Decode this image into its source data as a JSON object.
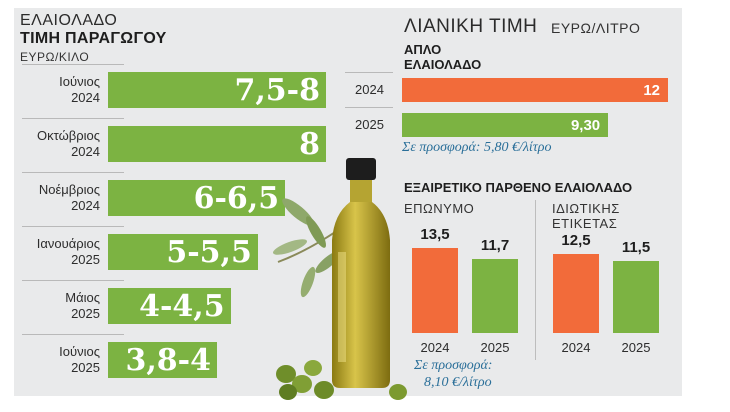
{
  "left": {
    "title1": "ΕΛΑΙΟΛΑΔΟ",
    "title2": "ΤΙΜΗ ΠΑΡΑΓΩΓΟΥ",
    "unit": "ΕΥΡΩ/ΚΙΛΟ"
  },
  "right": {
    "title": "ΛΙΑΝΙΚΗ ΤΙΜΗ",
    "unit": "ΕΥΡΩ/ΛΙΤΡΟ",
    "simple_title1": "ΑΠΛΟ",
    "simple_title2": "ΕΛΑΙΟΛΑΔΟ",
    "simple_note": "Σε προσφορά: 5,80 €/λίτρο",
    "extra_title": "ΕΞΑΙΡΕΤΙΚΟ ΠΑΡΘΕΝΟ ΕΛΑΙΟΛΑΔΟ",
    "branded_title": "ΕΠΩΝΥΜΟ",
    "private_title1": "ΙΔΙΩΤΙΚΗΣ",
    "private_title2": "ΕΤΙΚΕΤΑΣ",
    "branded_note1": "Σε προσφορά:",
    "branded_note2": "8,10 €/λίτρο"
  },
  "colors": {
    "green": "#7cb342",
    "orange": "#f26b3a",
    "panel": "#e9eaeb",
    "note": "#2a6f99"
  },
  "chart_data": [
    {
      "type": "bar",
      "orientation": "horizontal",
      "title": "ΤΙΜΗ ΠΑΡΑΓΩΓΟΥ",
      "unit": "ΕΥΡΩ/ΚΙΛΟ",
      "categories": [
        [
          "Ιούνιος",
          "2024"
        ],
        [
          "Οκτώβριος",
          "2024"
        ],
        [
          "Νοέμβριος",
          "2024"
        ],
        [
          "Ιανουάριος",
          "2025"
        ],
        [
          "Μάιος",
          "2025"
        ],
        [
          "Ιούνιος",
          "2025"
        ]
      ],
      "labels": [
        "7,5-8",
        "8",
        "6-6,5",
        "5-5,5",
        "4-4,5",
        "3,8-4"
      ],
      "low": [
        7.5,
        8,
        6,
        5,
        4,
        3.8
      ],
      "high": [
        8,
        8,
        6.5,
        5.5,
        4.5,
        4
      ]
    },
    {
      "type": "bar",
      "orientation": "horizontal",
      "title": "ΑΠΛΟ ΕΛΑΙΟΛΑΔΟ",
      "unit": "ΕΥΡΩ/ΛΙΤΡΟ",
      "categories": [
        "2024",
        "2025"
      ],
      "values": [
        12,
        9.3
      ],
      "labels": [
        "12",
        "9,30"
      ],
      "colors": [
        "#f26b3a",
        "#7cb342"
      ]
    },
    {
      "type": "bar",
      "title": "ΕΠΩΝΥΜΟ",
      "categories": [
        "2024",
        "2025"
      ],
      "values": [
        13.5,
        11.7
      ],
      "labels": [
        "13,5",
        "11,7"
      ],
      "colors": [
        "#f26b3a",
        "#7cb342"
      ]
    },
    {
      "type": "bar",
      "title": "ΙΔΙΩΤΙΚΗΣ ΕΤΙΚΕΤΑΣ",
      "categories": [
        "2024",
        "2025"
      ],
      "values": [
        12.5,
        11.5
      ],
      "labels": [
        "12,5",
        "11,5"
      ],
      "colors": [
        "#f26b3a",
        "#7cb342"
      ]
    }
  ]
}
